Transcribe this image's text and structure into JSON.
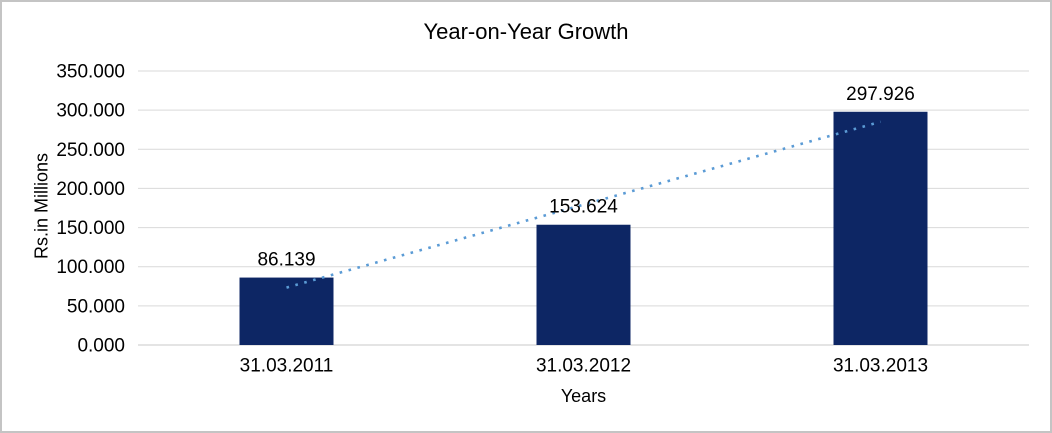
{
  "window": {
    "background": "#ffffff",
    "frame_border_color": "#c4c4c4"
  },
  "chart_data": {
    "type": "bar",
    "title": "Year-on-Year Growth",
    "categories": [
      "31.03.2011",
      "31.03.2012",
      "31.03.2013"
    ],
    "values": [
      86.139,
      153.624,
      297.926
    ],
    "value_labels": [
      "86.139",
      "153.624",
      "297.926"
    ],
    "xlabel": "Years",
    "ylabel": "Rs.in Millions",
    "ylim": [
      0,
      350
    ],
    "ytick_step": 50,
    "ytick_labels": [
      "0.000",
      "50.000",
      "100.000",
      "150.000",
      "200.000",
      "250.000",
      "300.000",
      "350.000"
    ],
    "grid": true,
    "legend": "none",
    "trendline": {
      "style": "dotted",
      "fit": "linear",
      "color": "#5b9bd5"
    },
    "colors": {
      "bar": "#0d2664",
      "gridline": "#d9d9d9",
      "axis_line": "#c9c9c9",
      "text": "#000000"
    }
  }
}
